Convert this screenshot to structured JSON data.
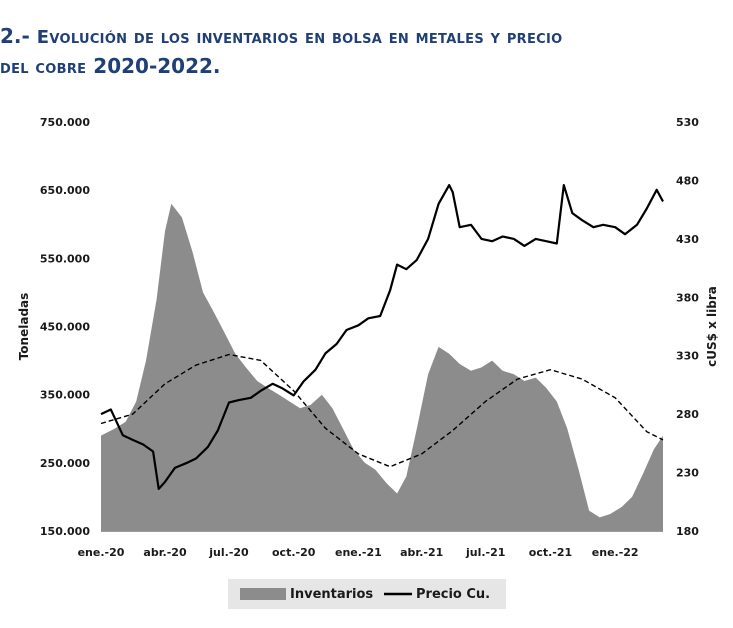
{
  "title": {
    "line1_prefix": "2.- ",
    "line1": "Evolución de los inventarios en bolsa en metales y precio",
    "line2": "del cobre",
    "line2_years": " 2020-2022."
  },
  "chart_data": {
    "type": "area+line",
    "x_tick_labels": [
      "ene.-20",
      "abr.-20",
      "jul.-20",
      "oct.-20",
      "ene.-21",
      "abr.-21",
      "jul.-21",
      "oct.-21",
      "ene.-22"
    ],
    "x_range_months": [
      "2020-01",
      "2022-03"
    ],
    "y_left": {
      "label": "Toneladas",
      "ticks": [
        "150.000",
        "250.000",
        "350.000",
        "450.000",
        "550.000",
        "650.000",
        "750.000"
      ],
      "lim": [
        150000,
        750000
      ]
    },
    "y_right": {
      "label": "cUS$ x libra",
      "ticks": [
        "180",
        "230",
        "280",
        "330",
        "380",
        "430",
        "480",
        "530"
      ],
      "lim": [
        180,
        530
      ]
    },
    "legend": {
      "position": "bottom",
      "items": [
        "Inventarios",
        "Precio Cu."
      ]
    },
    "colors": {
      "inventarios": "#8c8c8c",
      "precio": "#000000",
      "trend": "#000000"
    },
    "series": [
      {
        "name": "Inventarios",
        "axis": "left",
        "style": "area",
        "x": [
          "2020-01-01",
          "2020-01-20",
          "2020-02-05",
          "2020-02-20",
          "2020-03-05",
          "2020-03-20",
          "2020-04-01",
          "2020-04-10",
          "2020-04-25",
          "2020-05-10",
          "2020-05-25",
          "2020-06-10",
          "2020-06-25",
          "2020-07-10",
          "2020-07-25",
          "2020-08-10",
          "2020-08-25",
          "2020-09-10",
          "2020-09-25",
          "2020-10-10",
          "2020-10-25",
          "2020-11-10",
          "2020-11-25",
          "2020-12-10",
          "2020-12-25",
          "2021-01-10",
          "2021-01-25",
          "2021-02-10",
          "2021-02-25",
          "2021-03-10",
          "2021-03-25",
          "2021-04-10",
          "2021-04-25",
          "2021-05-10",
          "2021-05-25",
          "2021-06-10",
          "2021-06-25",
          "2021-07-10",
          "2021-07-25",
          "2021-08-10",
          "2021-08-25",
          "2021-09-10",
          "2021-09-25",
          "2021-10-10",
          "2021-10-25",
          "2021-11-10",
          "2021-11-25",
          "2021-12-10",
          "2021-12-25",
          "2022-01-10",
          "2022-01-25",
          "2022-02-10",
          "2022-02-25",
          "2022-03-10"
        ],
        "values": [
          290000,
          300000,
          310000,
          340000,
          400000,
          490000,
          590000,
          630000,
          610000,
          560000,
          500000,
          470000,
          440000,
          410000,
          390000,
          370000,
          360000,
          350000,
          340000,
          330000,
          335000,
          350000,
          330000,
          300000,
          270000,
          250000,
          240000,
          220000,
          205000,
          230000,
          300000,
          380000,
          420000,
          410000,
          395000,
          385000,
          390000,
          400000,
          385000,
          380000,
          370000,
          375000,
          360000,
          340000,
          300000,
          240000,
          180000,
          170000,
          175000,
          185000,
          200000,
          235000,
          270000,
          290000
        ]
      },
      {
        "name": "Precio Cu.",
        "axis": "right",
        "style": "line",
        "x": [
          "2020-01-01",
          "2020-01-15",
          "2020-02-01",
          "2020-02-15",
          "2020-03-01",
          "2020-03-15",
          "2020-03-23",
          "2020-04-01",
          "2020-04-15",
          "2020-05-01",
          "2020-05-15",
          "2020-06-01",
          "2020-06-15",
          "2020-07-01",
          "2020-07-15",
          "2020-08-01",
          "2020-08-15",
          "2020-09-01",
          "2020-09-15",
          "2020-10-01",
          "2020-10-15",
          "2020-11-01",
          "2020-11-15",
          "2020-12-01",
          "2020-12-15",
          "2021-01-01",
          "2021-01-15",
          "2021-02-01",
          "2021-02-15",
          "2021-02-25",
          "2021-03-10",
          "2021-03-25",
          "2021-04-10",
          "2021-04-25",
          "2021-05-10",
          "2021-05-15",
          "2021-05-25",
          "2021-06-10",
          "2021-06-25",
          "2021-07-10",
          "2021-07-25",
          "2021-08-10",
          "2021-08-25",
          "2021-09-10",
          "2021-09-25",
          "2021-10-10",
          "2021-10-20",
          "2021-11-01",
          "2021-11-15",
          "2021-12-01",
          "2021-12-15",
          "2022-01-01",
          "2022-01-15",
          "2022-02-01",
          "2022-02-15",
          "2022-03-01",
          "2022-03-10"
        ],
        "values": [
          280,
          284,
          262,
          258,
          254,
          248,
          216,
          222,
          234,
          238,
          242,
          252,
          266,
          290,
          292,
          294,
          300,
          306,
          302,
          296,
          308,
          318,
          332,
          340,
          352,
          356,
          362,
          364,
          386,
          408,
          404,
          412,
          430,
          460,
          476,
          470,
          440,
          442,
          430,
          428,
          432,
          430,
          424,
          430,
          428,
          426,
          476,
          452,
          446,
          440,
          442,
          440,
          434,
          442,
          456,
          472,
          462
        ]
      },
      {
        "name": "",
        "axis": "right",
        "style": "dashed",
        "x": [
          "2020-01-01",
          "2020-02-15",
          "2020-04-01",
          "2020-05-15",
          "2020-07-01",
          "2020-08-15",
          "2020-10-01",
          "2020-11-15",
          "2021-01-01",
          "2021-02-15",
          "2021-04-01",
          "2021-05-15",
          "2021-07-01",
          "2021-08-15",
          "2021-10-01",
          "2021-11-15",
          "2022-01-01",
          "2022-02-15",
          "2022-03-10"
        ],
        "values": [
          272,
          280,
          306,
          322,
          331,
          326,
          300,
          268,
          246,
          235,
          246,
          266,
          291,
          310,
          318,
          310,
          294,
          265,
          258
        ]
      }
    ]
  }
}
